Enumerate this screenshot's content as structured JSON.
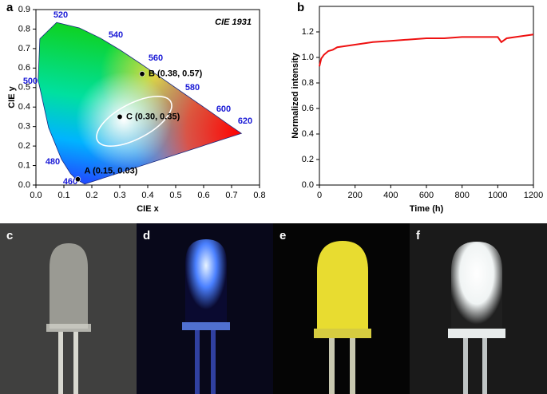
{
  "chart_data": [
    {
      "type": "scatter",
      "panel_label": "a",
      "annotation": "CIE 1931",
      "x_label": "CIE x",
      "y_label": "CIE y",
      "xlim": [
        0,
        0.8
      ],
      "xticks": [
        {
          "value": 0,
          "label": "0.0"
        },
        {
          "value": 0.1,
          "label": "0.1"
        },
        {
          "value": 0.2,
          "label": "0.2"
        },
        {
          "value": 0.3,
          "label": "0.3"
        },
        {
          "value": 0.4,
          "label": "0.4"
        },
        {
          "value": 0.5,
          "label": "0.5"
        },
        {
          "value": 0.6,
          "label": "0.6"
        },
        {
          "value": 0.7,
          "label": "0.7"
        },
        {
          "value": 0.8,
          "label": "0.8"
        }
      ],
      "ylim": [
        0,
        0.9
      ],
      "yticks": [
        {
          "value": 0,
          "label": "0.0"
        },
        {
          "value": 0.1,
          "label": "0.1"
        },
        {
          "value": 0.2,
          "label": "0.2"
        },
        {
          "value": 0.3,
          "label": "0.3"
        },
        {
          "value": 0.4,
          "label": "0.4"
        },
        {
          "value": 0.5,
          "label": "0.5"
        },
        {
          "value": 0.6,
          "label": "0.6"
        },
        {
          "value": 0.7,
          "label": "0.7"
        },
        {
          "value": 0.8,
          "label": "0.8"
        },
        {
          "value": 0.9,
          "label": "0.9"
        }
      ],
      "wavelength_labels": [
        "520",
        "540",
        "560",
        "580",
        "600",
        "620",
        "500",
        "480",
        "460"
      ],
      "points": [
        {
          "label": "A (0.15, 0.03)",
          "x": 0.15,
          "y": 0.03
        },
        {
          "label": "B (0.38, 0.57)",
          "x": 0.38,
          "y": 0.57
        },
        {
          "label": "C (0.30, 0.35)",
          "x": 0.3,
          "y": 0.35
        }
      ],
      "color": "#000000"
    },
    {
      "type": "line",
      "panel_label": "b",
      "x_label": "Time (h)",
      "y_label": "Normalized intensity",
      "xlim": [
        0,
        1200
      ],
      "xticks": [
        0,
        200,
        400,
        600,
        800,
        1000,
        1200
      ],
      "ylim": [
        0,
        1.4
      ],
      "yticks": [
        {
          "value": 0,
          "label": "0.0"
        },
        {
          "value": 0.2,
          "label": "0.2"
        },
        {
          "value": 0.4,
          "label": "0.4"
        },
        {
          "value": 0.6,
          "label": "0.6"
        },
        {
          "value": 0.8,
          "label": "0.8"
        },
        {
          "value": 1.0,
          "label": "1.0"
        },
        {
          "value": 1.2,
          "label": "1.2"
        }
      ],
      "x": [
        0,
        10,
        25,
        50,
        75,
        100,
        150,
        200,
        250,
        300,
        400,
        500,
        600,
        700,
        800,
        900,
        1000,
        1020,
        1050,
        1100,
        1200
      ],
      "values": [
        0.93,
        0.99,
        1.02,
        1.05,
        1.06,
        1.08,
        1.09,
        1.1,
        1.11,
        1.12,
        1.13,
        1.14,
        1.15,
        1.15,
        1.16,
        1.16,
        1.16,
        1.12,
        1.15,
        1.16,
        1.18
      ],
      "color": "#ee1111"
    }
  ],
  "photos": [
    {
      "label": "c"
    },
    {
      "label": "d"
    },
    {
      "label": "e"
    },
    {
      "label": "f"
    }
  ]
}
